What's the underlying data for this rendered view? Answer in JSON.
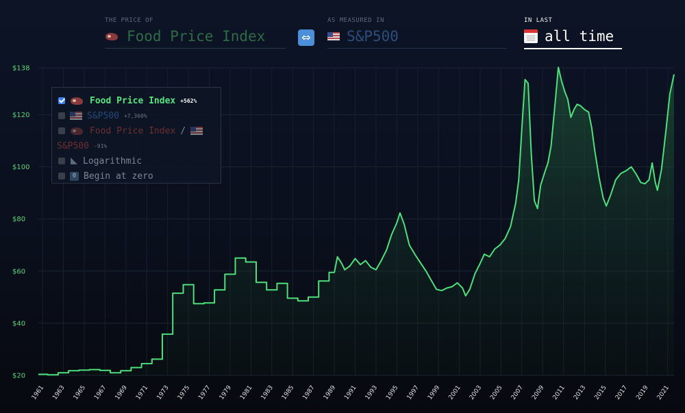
{
  "header": {
    "price_caption": "THE PRICE OF",
    "price_value": "Food Price Index",
    "measure_caption": "AS MEASURED IN",
    "measure_value": "S&P500",
    "period_caption": "IN LAST",
    "period_value": "all time",
    "swap_icon": "left-right-arrow-icon"
  },
  "legend": {
    "items": [
      {
        "label": "Food Price Index",
        "pct": "+562%",
        "checked": true
      },
      {
        "label": "S&P500",
        "pct": "+7,360%",
        "checked": false
      },
      {
        "label_a": "Food Price Index",
        "sep": "/",
        "label_b": "S&P500",
        "pct": "-91%",
        "checked": false
      },
      {
        "label": "Logarithmic",
        "checked": false
      },
      {
        "label": "Begin at zero",
        "icon_text": "0",
        "checked": false
      }
    ]
  },
  "colors": {
    "line": "#4ee07a",
    "ytick": "#57d67c",
    "background": "#0b1120"
  },
  "chart_data": {
    "type": "area",
    "ylim": [
      20,
      140
    ],
    "yticks": [
      20,
      40,
      60,
      80,
      100,
      120,
      138
    ],
    "ytick_labels": [
      "$20",
      "$40",
      "$60",
      "$80",
      "$100",
      "$120",
      "$138"
    ],
    "xlim": [
      1960.6,
      2021.6
    ],
    "xticks": [
      1961,
      1963,
      1965,
      1967,
      1969,
      1971,
      1973,
      1975,
      1977,
      1979,
      1981,
      1983,
      1985,
      1987,
      1989,
      1991,
      1993,
      1995,
      1997,
      1999,
      2001,
      2003,
      2005,
      2007,
      2009,
      2011,
      2013,
      2015,
      2017,
      2019,
      2021
    ],
    "grid": true,
    "series": [
      {
        "values": [
          [
            1960.6,
            20.4
          ],
          [
            1961.5,
            20.4
          ],
          [
            1961.5,
            20.2
          ],
          [
            1962.5,
            20.2
          ],
          [
            1962.5,
            21.0
          ],
          [
            1963.5,
            21.0
          ],
          [
            1963.5,
            21.8
          ],
          [
            1964.5,
            21.8
          ],
          [
            1964.5,
            22.0
          ],
          [
            1965.5,
            22.0
          ],
          [
            1965.5,
            22.2
          ],
          [
            1966.5,
            22.2
          ],
          [
            1966.5,
            21.9
          ],
          [
            1967.5,
            21.9
          ],
          [
            1967.5,
            21.0
          ],
          [
            1968.5,
            21.0
          ],
          [
            1968.5,
            21.8
          ],
          [
            1969.5,
            21.8
          ],
          [
            1969.5,
            23.0
          ],
          [
            1970.5,
            23.0
          ],
          [
            1970.5,
            24.5
          ],
          [
            1971.5,
            24.5
          ],
          [
            1971.5,
            26.2
          ],
          [
            1972.5,
            26.2
          ],
          [
            1972.5,
            35.8
          ],
          [
            1973.5,
            35.8
          ],
          [
            1973.5,
            51.5
          ],
          [
            1974.5,
            51.5
          ],
          [
            1974.5,
            54.8
          ],
          [
            1975.5,
            54.8
          ],
          [
            1975.5,
            47.5
          ],
          [
            1976.5,
            47.5
          ],
          [
            1976.5,
            47.8
          ],
          [
            1977.5,
            47.8
          ],
          [
            1977.5,
            52.8
          ],
          [
            1978.5,
            52.8
          ],
          [
            1978.5,
            58.8
          ],
          [
            1979.5,
            58.8
          ],
          [
            1979.5,
            65.0
          ],
          [
            1980.5,
            65.0
          ],
          [
            1980.5,
            63.5
          ],
          [
            1981.5,
            63.5
          ],
          [
            1981.5,
            55.7
          ],
          [
            1982.5,
            55.7
          ],
          [
            1982.5,
            52.8
          ],
          [
            1983.5,
            52.8
          ],
          [
            1983.5,
            55.3
          ],
          [
            1984.5,
            55.3
          ],
          [
            1984.5,
            49.6
          ],
          [
            1985.5,
            49.6
          ],
          [
            1985.5,
            48.6
          ],
          [
            1986.5,
            48.6
          ],
          [
            1986.5,
            50.0
          ],
          [
            1987.5,
            50.0
          ],
          [
            1987.5,
            56.2
          ],
          [
            1988.5,
            56.2
          ],
          [
            1988.5,
            59.5
          ],
          [
            1989.0,
            59.5
          ],
          [
            1989.3,
            65.5
          ],
          [
            1989.7,
            63.0
          ],
          [
            1990.0,
            60.5
          ],
          [
            1990.5,
            62.0
          ],
          [
            1991.0,
            64.8
          ],
          [
            1991.5,
            62.5
          ],
          [
            1992.0,
            64.0
          ],
          [
            1992.5,
            61.5
          ],
          [
            1993.0,
            60.5
          ],
          [
            1993.5,
            64.0
          ],
          [
            1994.0,
            68.0
          ],
          [
            1994.5,
            74.0
          ],
          [
            1995.0,
            78.5
          ],
          [
            1995.3,
            82.3
          ],
          [
            1995.7,
            78.0
          ],
          [
            1996.2,
            70.0
          ],
          [
            1996.8,
            66.0
          ],
          [
            1997.3,
            63.0
          ],
          [
            1997.8,
            60.0
          ],
          [
            1998.3,
            56.5
          ],
          [
            1998.8,
            53.0
          ],
          [
            1999.3,
            52.5
          ],
          [
            1999.8,
            53.5
          ],
          [
            2000.3,
            54.0
          ],
          [
            2000.8,
            55.5
          ],
          [
            2001.3,
            53.5
          ],
          [
            2001.6,
            50.5
          ],
          [
            2002.0,
            53.0
          ],
          [
            2002.5,
            59.0
          ],
          [
            2003.0,
            63.0
          ],
          [
            2003.4,
            66.5
          ],
          [
            2003.9,
            65.5
          ],
          [
            2004.4,
            68.5
          ],
          [
            2004.9,
            70.0
          ],
          [
            2005.4,
            72.5
          ],
          [
            2005.9,
            77.0
          ],
          [
            2006.4,
            86.0
          ],
          [
            2006.7,
            95.0
          ],
          [
            2007.0,
            115.0
          ],
          [
            2007.3,
            133.5
          ],
          [
            2007.6,
            132.0
          ],
          [
            2007.9,
            105.0
          ],
          [
            2008.2,
            87.0
          ],
          [
            2008.5,
            84.0
          ],
          [
            2008.8,
            93.0
          ],
          [
            2009.2,
            98.0
          ],
          [
            2009.5,
            101.5
          ],
          [
            2009.8,
            108.0
          ],
          [
            2010.2,
            125.0
          ],
          [
            2010.5,
            138.2
          ],
          [
            2010.8,
            133.0
          ],
          [
            2011.1,
            129.0
          ],
          [
            2011.4,
            126.0
          ],
          [
            2011.7,
            119.0
          ],
          [
            2012.0,
            122.0
          ],
          [
            2012.3,
            124.0
          ],
          [
            2012.6,
            123.5
          ],
          [
            2013.0,
            122.0
          ],
          [
            2013.4,
            121.0
          ],
          [
            2013.7,
            115.0
          ],
          [
            2014.0,
            106.0
          ],
          [
            2014.4,
            96.0
          ],
          [
            2014.8,
            88.0
          ],
          [
            2015.1,
            85.0
          ],
          [
            2015.5,
            89.0
          ],
          [
            2016.0,
            95.0
          ],
          [
            2016.5,
            97.5
          ],
          [
            2017.0,
            98.5
          ],
          [
            2017.5,
            100.0
          ],
          [
            2018.0,
            97.0
          ],
          [
            2018.4,
            94.0
          ],
          [
            2018.8,
            93.5
          ],
          [
            2019.2,
            95.0
          ],
          [
            2019.5,
            101.5
          ],
          [
            2019.8,
            94.0
          ],
          [
            2020.0,
            91.0
          ],
          [
            2020.4,
            99.0
          ],
          [
            2020.8,
            113.0
          ],
          [
            2021.2,
            128.0
          ],
          [
            2021.6,
            135.5
          ]
        ]
      }
    ]
  }
}
